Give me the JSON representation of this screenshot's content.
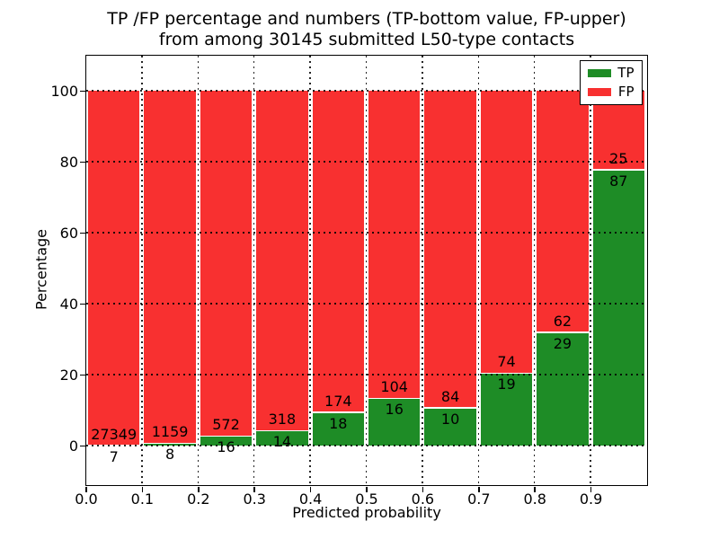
{
  "title": {
    "line1": "TP /FP percentage and numbers (TP-bottom value, FP-upper)",
    "line2": "from among 30145 submitted L50-type contacts"
  },
  "chart_data": {
    "type": "bar",
    "stacked": true,
    "normalized": "each bin stacked to 100%",
    "title": "TP /FP percentage and numbers (TP-bottom value, FP-upper) from among 30145 submitted L50-type contacts",
    "xlabel": "Predicted probability",
    "ylabel": "Percentage",
    "total_submitted": 30145,
    "xlim": [
      0.0,
      1.0
    ],
    "ylim": [
      -11,
      110
    ],
    "xticks": [
      "0.0",
      "0.1",
      "0.2",
      "0.3",
      "0.4",
      "0.5",
      "0.6",
      "0.7",
      "0.8",
      "0.9"
    ],
    "yticks": [
      "0",
      "20",
      "40",
      "60",
      "80",
      "100"
    ],
    "grid": true,
    "grid_style": "dotted",
    "categories": [
      "0.0-0.1",
      "0.1-0.2",
      "0.2-0.3",
      "0.3-0.4",
      "0.4-0.5",
      "0.5-0.6",
      "0.6-0.7",
      "0.7-0.8",
      "0.8-0.9",
      "0.9-1.0"
    ],
    "series": [
      {
        "name": "TP",
        "color": "#1e8c26",
        "counts": [
          7,
          8,
          16,
          14,
          18,
          16,
          10,
          19,
          29,
          87
        ]
      },
      {
        "name": "FP",
        "color": "#f83030",
        "counts": [
          27349,
          1159,
          572,
          318,
          174,
          104,
          84,
          74,
          62,
          25
        ]
      }
    ],
    "tp_percent": [
      0.03,
      0.69,
      2.72,
      4.22,
      9.38,
      13.33,
      10.64,
      20.43,
      31.87,
      77.68
    ],
    "legend": {
      "position": "upper right",
      "entries": [
        {
          "label": "TP",
          "color": "#1e8c26"
        },
        {
          "label": "FP",
          "color": "#f83030"
        }
      ]
    }
  }
}
